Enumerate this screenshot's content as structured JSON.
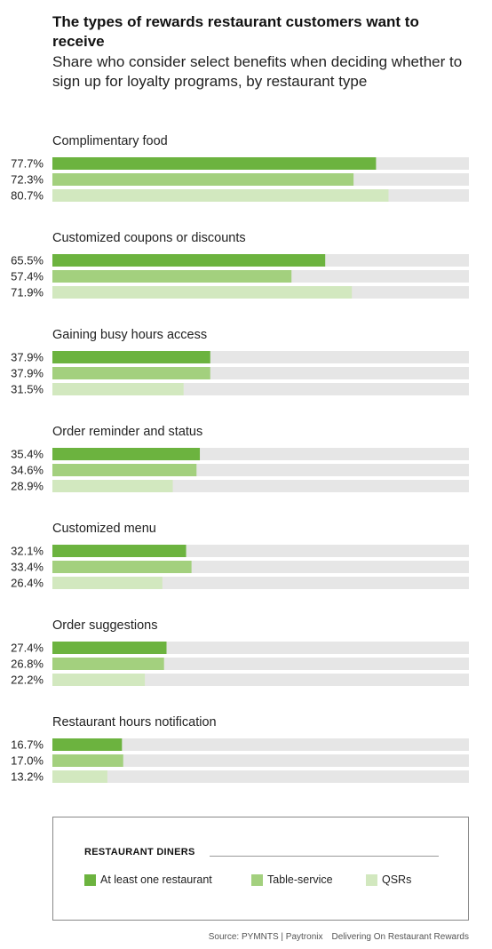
{
  "title": "The types of rewards restaurant customers want to receive",
  "subtitle": "Share who consider select benefits when deciding whether to sign up for loyalty programs, by restaurant type",
  "legend": {
    "title": "RESTAURANT DINERS",
    "items": [
      {
        "label": "At least one restaurant",
        "color": "#6cb33f"
      },
      {
        "label": "Table-service",
        "color": "#a3d07e"
      },
      {
        "label": "QSRs",
        "color": "#d2e8bf"
      }
    ]
  },
  "source": {
    "text": "Source: PYMNTS | Paytronix",
    "report": "Delivering On Restaurant Rewards"
  },
  "chart_data": {
    "type": "bar",
    "orientation": "horizontal",
    "xlim": [
      0,
      100
    ],
    "track_color": "#e6e6e6",
    "categories": [
      "Complimentary food",
      "Customized coupons or discounts",
      "Gaining busy hours access",
      "Order reminder and status",
      "Customized menu",
      "Order suggestions",
      "Restaurant hours notification"
    ],
    "series": [
      {
        "name": "At least one restaurant",
        "color": "#6cb33f",
        "values": [
          77.7,
          65.5,
          37.9,
          35.4,
          32.1,
          27.4,
          16.7
        ],
        "labels": [
          "77.7%",
          "65.5%",
          "37.9%",
          "35.4%",
          "32.1%",
          "27.4%",
          "16.7%"
        ]
      },
      {
        "name": "Table-service",
        "color": "#a3d07e",
        "values": [
          72.3,
          57.4,
          37.9,
          34.6,
          33.4,
          26.8,
          17.0
        ],
        "labels": [
          "72.3%",
          "57.4%",
          "37.9%",
          "34.6%",
          "33.4%",
          "26.8%",
          "17.0%"
        ]
      },
      {
        "name": "QSRs",
        "color": "#d2e8bf",
        "values": [
          80.7,
          71.9,
          31.5,
          28.9,
          26.4,
          22.2,
          13.2
        ],
        "labels": [
          "80.7%",
          "71.9%",
          "31.5%",
          "28.9%",
          "26.4%",
          "22.2%",
          "13.2%"
        ]
      }
    ]
  }
}
